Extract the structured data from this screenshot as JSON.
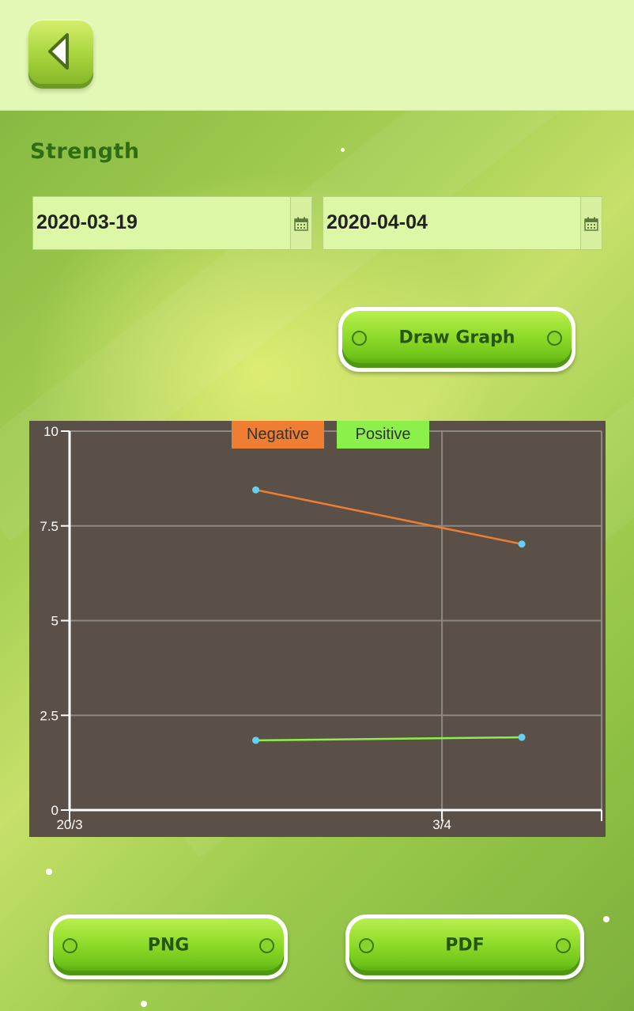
{
  "screen": {
    "section_title": "Strength",
    "start_date": "2020-03-19",
    "end_date": "2020-04-04",
    "draw_graph_label": "Draw Graph",
    "png_label": "PNG",
    "pdf_label": "PDF"
  },
  "icons": {
    "back": "chevron-left-icon",
    "calendar": "calendar-icon"
  },
  "colors": {
    "header_bg": "#e2f8b4",
    "title": "#2e6d12",
    "negative": "#ef7d32",
    "positive": "#8cf04a",
    "point": "#63d2f2",
    "chart_bg": "#5a5048"
  },
  "chart_data": {
    "type": "line",
    "x_tick_labels": [
      "20/3",
      "3/4"
    ],
    "x_tick_dates": [
      "2020-03-20",
      "2020-04-03"
    ],
    "xlim": [
      "2020-03-20",
      "2020-04-09"
    ],
    "y_ticks": [
      0,
      2.5,
      5,
      7.5,
      10
    ],
    "y_tick_labels": [
      "0",
      "2.5",
      "5",
      "7.5",
      "10"
    ],
    "ylim": [
      0,
      10
    ],
    "grid": true,
    "legend_position": "top",
    "series": [
      {
        "name": "Negative",
        "color": "#ef7d32",
        "points": [
          {
            "x": "2020-03-27",
            "y": 8.45
          },
          {
            "x": "2020-04-06",
            "y": 7.02
          }
        ]
      },
      {
        "name": "Positive",
        "color": "#8cf04a",
        "points": [
          {
            "x": "2020-03-27",
            "y": 1.84
          },
          {
            "x": "2020-04-06",
            "y": 1.92
          }
        ]
      }
    ]
  }
}
